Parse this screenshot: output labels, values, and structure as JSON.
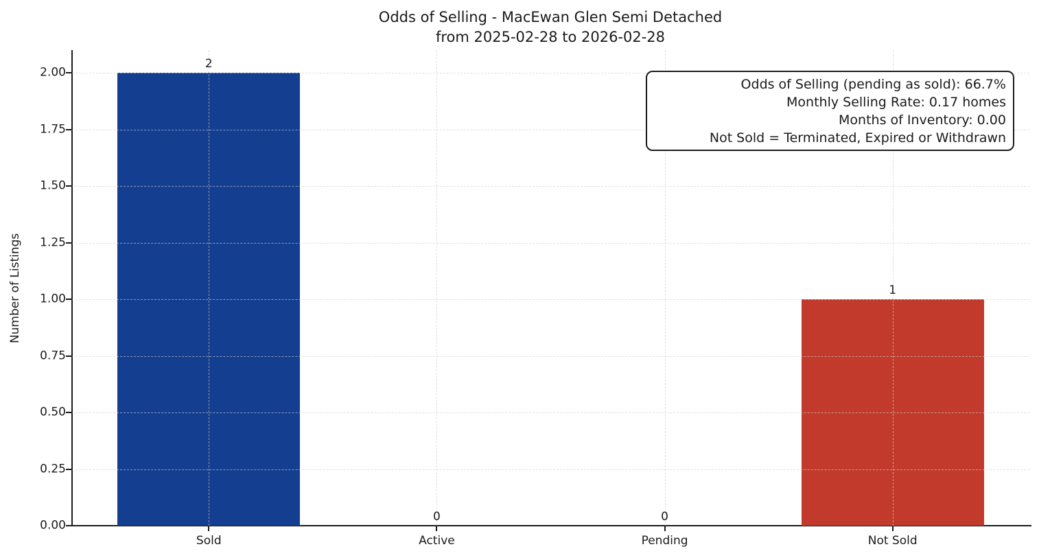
{
  "chart_data": {
    "type": "bar",
    "title": "Odds of Selling - MacEwan Glen Semi Detached\nfrom 2025-02-28 to 2026-02-28",
    "title_line1": "Odds of Selling - MacEwan Glen Semi Detached",
    "title_line2": "from 2025-02-28 to 2026-02-28",
    "ylabel": "Number of Listings",
    "xlabel": "",
    "categories": [
      "Sold",
      "Active",
      "Pending",
      "Not Sold"
    ],
    "values": [
      2,
      0,
      0,
      1
    ],
    "value_labels": [
      "2",
      "0",
      "0",
      "1"
    ],
    "bar_colors": [
      "#143e8f",
      null,
      null,
      "#c23a2b"
    ],
    "ylim": [
      0,
      2.1
    ],
    "yticks": [
      0,
      0.25,
      0.5,
      0.75,
      1,
      1.25,
      1.5,
      1.75,
      2
    ],
    "ytick_labels": [
      "0.00",
      "0.25",
      "0.50",
      "0.75",
      "1.00",
      "1.25",
      "1.50",
      "1.75",
      "2.00"
    ],
    "grid": "both-dashed-over-bars",
    "legend": "none",
    "annotation_box": {
      "align": "right",
      "lines": [
        "Odds of Selling (pending as sold): 66.7%",
        "Monthly Selling Rate: 0.17 homes",
        "Months of Inventory: 0.00",
        "Not Sold = Terminated, Expired or Withdrawn"
      ]
    }
  },
  "colors": {
    "sold_bar": "#143e8f",
    "not_sold_bar": "#c23a2b",
    "spine": "#1a1a1a",
    "gridline": "#d0d0d0",
    "background": "#ffffff",
    "text": "#1a1a1a"
  }
}
